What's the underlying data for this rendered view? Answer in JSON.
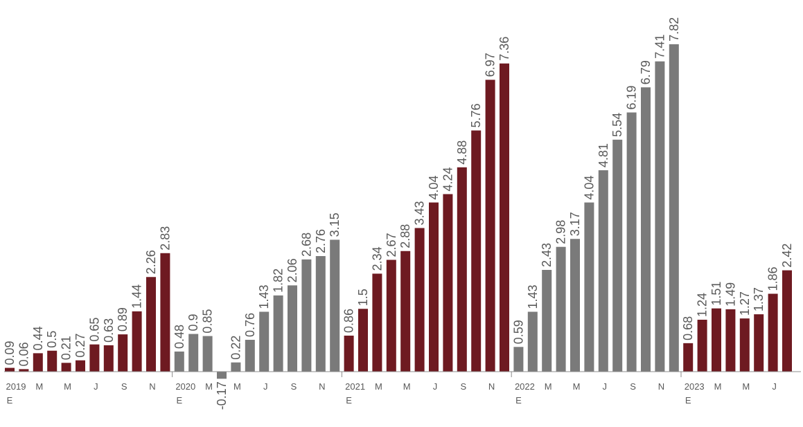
{
  "chart_data": {
    "type": "bar",
    "title": "",
    "xlabel": "",
    "ylabel": "",
    "colors": {
      "dark_red": "#6e1a21",
      "gray": "#7a7a7a",
      "axis": "#8c8c8c",
      "text": "#595959"
    },
    "ylim": [
      -0.25,
      8.2
    ],
    "bars": [
      {
        "v": 0.09,
        "c": "dark_red"
      },
      {
        "v": 0.06,
        "c": "dark_red"
      },
      {
        "v": 0.44,
        "c": "dark_red"
      },
      {
        "v": 0.5,
        "c": "dark_red"
      },
      {
        "v": 0.21,
        "c": "dark_red"
      },
      {
        "v": 0.27,
        "c": "dark_red"
      },
      {
        "v": 0.65,
        "c": "dark_red"
      },
      {
        "v": 0.63,
        "c": "dark_red"
      },
      {
        "v": 0.89,
        "c": "dark_red"
      },
      {
        "v": 1.44,
        "c": "dark_red"
      },
      {
        "v": 2.26,
        "c": "dark_red"
      },
      {
        "v": 2.83,
        "c": "dark_red"
      },
      {
        "v": 0.48,
        "c": "gray"
      },
      {
        "v": 0.9,
        "c": "gray"
      },
      {
        "v": 0.85,
        "c": "gray"
      },
      {
        "v": -0.17,
        "c": "gray"
      },
      {
        "v": 0.22,
        "c": "gray"
      },
      {
        "v": 0.76,
        "c": "gray"
      },
      {
        "v": 1.43,
        "c": "gray"
      },
      {
        "v": 1.82,
        "c": "gray"
      },
      {
        "v": 2.06,
        "c": "gray"
      },
      {
        "v": 2.68,
        "c": "gray"
      },
      {
        "v": 2.76,
        "c": "gray"
      },
      {
        "v": 3.15,
        "c": "gray"
      },
      {
        "v": 0.86,
        "c": "dark_red"
      },
      {
        "v": 1.5,
        "c": "dark_red"
      },
      {
        "v": 2.34,
        "c": "dark_red"
      },
      {
        "v": 2.67,
        "c": "dark_red"
      },
      {
        "v": 2.88,
        "c": "dark_red"
      },
      {
        "v": 3.43,
        "c": "dark_red"
      },
      {
        "v": 4.04,
        "c": "dark_red"
      },
      {
        "v": 4.24,
        "c": "dark_red"
      },
      {
        "v": 4.88,
        "c": "dark_red"
      },
      {
        "v": 5.76,
        "c": "dark_red"
      },
      {
        "v": 6.97,
        "c": "dark_red"
      },
      {
        "v": 7.36,
        "c": "dark_red"
      },
      {
        "v": 0.59,
        "c": "gray"
      },
      {
        "v": 1.43,
        "c": "gray"
      },
      {
        "v": 2.43,
        "c": "gray"
      },
      {
        "v": 2.98,
        "c": "gray"
      },
      {
        "v": 3.17,
        "c": "gray"
      },
      {
        "v": 4.04,
        "c": "gray"
      },
      {
        "v": 4.81,
        "c": "gray"
      },
      {
        "v": 5.54,
        "c": "gray"
      },
      {
        "v": 6.19,
        "c": "gray"
      },
      {
        "v": 6.79,
        "c": "gray"
      },
      {
        "v": 7.41,
        "c": "gray"
      },
      {
        "v": 7.82,
        "c": "gray"
      },
      {
        "v": 0.68,
        "c": "dark_red"
      },
      {
        "v": 1.24,
        "c": "dark_red"
      },
      {
        "v": 1.51,
        "c": "dark_red"
      },
      {
        "v": 1.49,
        "c": "dark_red"
      },
      {
        "v": 1.27,
        "c": "dark_red"
      },
      {
        "v": 1.37,
        "c": "dark_red"
      },
      {
        "v": 1.86,
        "c": "dark_red"
      },
      {
        "v": 2.42,
        "c": "dark_red"
      }
    ],
    "x_tick_labels": [
      {
        "i": 0,
        "line1": "2019",
        "line2": "E"
      },
      {
        "i": 2,
        "line1": "M",
        "line2": ""
      },
      {
        "i": 4,
        "line1": "M",
        "line2": ""
      },
      {
        "i": 6,
        "line1": "J",
        "line2": ""
      },
      {
        "i": 8,
        "line1": "S",
        "line2": ""
      },
      {
        "i": 10,
        "line1": "N",
        "line2": ""
      },
      {
        "i": 12,
        "line1": "2020",
        "line2": "E"
      },
      {
        "i": 14,
        "line1": "M",
        "line2": ""
      },
      {
        "i": 16,
        "line1": "M",
        "line2": ""
      },
      {
        "i": 18,
        "line1": "J",
        "line2": ""
      },
      {
        "i": 20,
        "line1": "S",
        "line2": ""
      },
      {
        "i": 22,
        "line1": "N",
        "line2": ""
      },
      {
        "i": 24,
        "line1": "2021",
        "line2": "E"
      },
      {
        "i": 26,
        "line1": "M",
        "line2": ""
      },
      {
        "i": 28,
        "line1": "M",
        "line2": ""
      },
      {
        "i": 30,
        "line1": "J",
        "line2": ""
      },
      {
        "i": 32,
        "line1": "S",
        "line2": ""
      },
      {
        "i": 34,
        "line1": "N",
        "line2": ""
      },
      {
        "i": 36,
        "line1": "2022",
        "line2": "E"
      },
      {
        "i": 38,
        "line1": "M",
        "line2": ""
      },
      {
        "i": 40,
        "line1": "M",
        "line2": ""
      },
      {
        "i": 42,
        "line1": "J",
        "line2": ""
      },
      {
        "i": 44,
        "line1": "S",
        "line2": ""
      },
      {
        "i": 46,
        "line1": "N",
        "line2": ""
      },
      {
        "i": 48,
        "line1": "2023",
        "line2": "E"
      },
      {
        "i": 50,
        "line1": "M",
        "line2": ""
      },
      {
        "i": 52,
        "line1": "M",
        "line2": ""
      },
      {
        "i": 54,
        "line1": "J",
        "line2": ""
      }
    ],
    "grid": false,
    "legend": "none"
  }
}
